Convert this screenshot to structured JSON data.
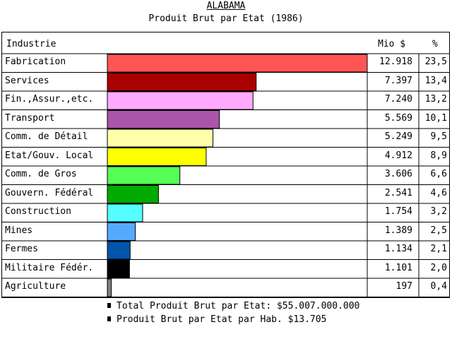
{
  "title": "ALABAMA",
  "subtitle": "Produit Brut par Etat (1986)",
  "columns": {
    "industry": "Industrie",
    "value": "Mio $",
    "percent": "%"
  },
  "chart_data": {
    "type": "bar",
    "orientation": "horizontal",
    "title": "ALABAMA",
    "subtitle": "Produit Brut par Etat (1986)",
    "xlim": [
      0,
      12918
    ],
    "rows": [
      {
        "label": "Fabrication",
        "value": 12918,
        "value_text": "12.918",
        "percent": "23,5",
        "color": "#ff5555"
      },
      {
        "label": "Services",
        "value": 7397,
        "value_text": "7.397",
        "percent": "13,4",
        "color": "#aa0000"
      },
      {
        "label": "Fin.,Assur.,etc.",
        "value": 7240,
        "value_text": "7.240",
        "percent": "13,2",
        "color": "#ffaaff"
      },
      {
        "label": "Transport",
        "value": 5569,
        "value_text": "5.569",
        "percent": "10,1",
        "color": "#aa55aa"
      },
      {
        "label": "Comm. de Détail",
        "value": 5249,
        "value_text": "5.249",
        "percent": "9,5",
        "color": "#ffffaa"
      },
      {
        "label": "Etat/Gouv. Local",
        "value": 4912,
        "value_text": "4.912",
        "percent": "8,9",
        "color": "#ffff00"
      },
      {
        "label": "Comm. de Gros",
        "value": 3606,
        "value_text": "3.606",
        "percent": "6,6",
        "color": "#55ff55"
      },
      {
        "label": "Gouvern. Fédéral",
        "value": 2541,
        "value_text": "2.541",
        "percent": "4,6",
        "color": "#00aa00"
      },
      {
        "label": "Construction",
        "value": 1754,
        "value_text": "1.754",
        "percent": "3,2",
        "color": "#55ffff"
      },
      {
        "label": "Mines",
        "value": 1389,
        "value_text": "1.389",
        "percent": "2,5",
        "color": "#55aaff"
      },
      {
        "label": "Fermes",
        "value": 1134,
        "value_text": "1.134",
        "percent": "2,1",
        "color": "#0055aa"
      },
      {
        "label": "Militaire Fédér.",
        "value": 1101,
        "value_text": "1.101",
        "percent": "2,0",
        "color": "#000000"
      },
      {
        "label": "Agriculture",
        "value": 197,
        "value_text": "197",
        "percent": "0,4",
        "color": "#808080"
      }
    ]
  },
  "footer": {
    "total": "Total Produit Brut par Etat: $55.007.000.000",
    "per_capita": "Produit Brut par Etat par Hab. $13.705"
  }
}
